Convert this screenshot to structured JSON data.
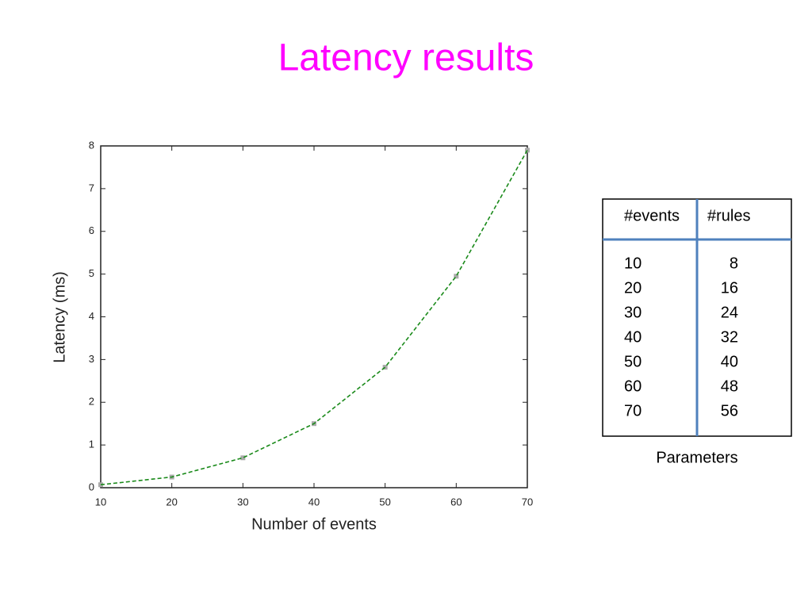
{
  "title": "Latency results",
  "chart_data": {
    "type": "line",
    "x": [
      10,
      20,
      30,
      40,
      50,
      60,
      70
    ],
    "values": [
      0.07,
      0.25,
      0.7,
      1.5,
      2.82,
      4.95,
      7.9
    ],
    "color": "#1a8a1a",
    "marker_color": "#aaaaaa",
    "line_style": "dashed",
    "xlim": [
      10,
      70
    ],
    "xticks": [
      10,
      20,
      30,
      40,
      50,
      60,
      70
    ],
    "ylim": [
      0,
      8
    ],
    "yticks": [
      0,
      1,
      2,
      3,
      4,
      5,
      6,
      7,
      8
    ],
    "xlabel": "Number of events",
    "ylabel": "Latency (ms)"
  },
  "table": {
    "header": [
      "#events",
      "#rules"
    ],
    "rows": [
      [
        10,
        8
      ],
      [
        20,
        16
      ],
      [
        30,
        24
      ],
      [
        40,
        32
      ],
      [
        50,
        40
      ],
      [
        60,
        48
      ],
      [
        70,
        56
      ]
    ],
    "caption": "Parameters"
  }
}
